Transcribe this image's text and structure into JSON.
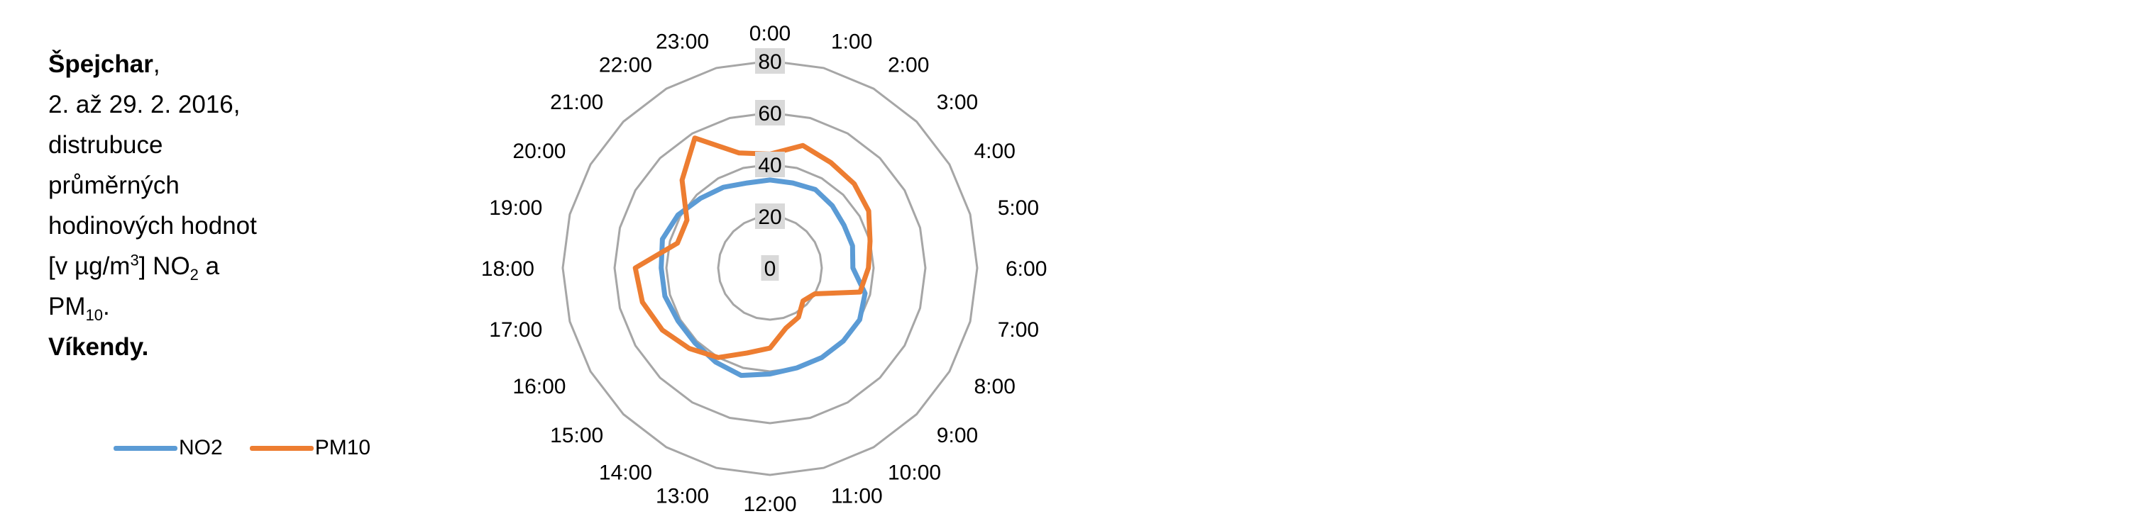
{
  "caption": {
    "station": "Špejchar",
    "station_suffix": ",",
    "period": "2. až 29. 2. 2016,",
    "line1": "distrubuce",
    "line2": "průměrných",
    "line3": "hodinových hodnot",
    "unit_open": "[v µg/m",
    "unit_sup": "3",
    "unit_close": "] NO",
    "no2_sub": "2",
    "and": " a",
    "pm": "PM",
    "pm_sub": "10",
    "pm_end": ".",
    "days": "Víkendy."
  },
  "colors": {
    "no2": "#5B9BD5",
    "pm10": "#ED7D31",
    "grid": "#A6A6A6",
    "tick_bg": "#D9D9D9"
  },
  "chart_data": {
    "type": "radar",
    "categories": [
      "0:00",
      "1:00",
      "2:00",
      "3:00",
      "4:00",
      "5:00",
      "6:00",
      "7:00",
      "8:00",
      "9:00",
      "10:00",
      "11:00",
      "12:00",
      "13:00",
      "14:00",
      "15:00",
      "16:00",
      "17:00",
      "18:00",
      "19:00",
      "20:00",
      "21:00",
      "22:00",
      "23:00"
    ],
    "rlim": [
      0,
      80
    ],
    "ticks": [
      "0",
      "20",
      "40",
      "60",
      "80"
    ],
    "grid": true,
    "legend_position": "bottom-left",
    "series": [
      {
        "name": "NO2",
        "values": [
          34,
          34,
          35,
          34,
          33,
          33,
          32,
          38,
          40,
          40,
          40,
          40,
          41,
          43,
          42,
          41,
          41,
          42,
          42,
          43,
          41,
          38,
          36,
          34
        ]
      },
      {
        "name": "PM10",
        "values": [
          44,
          49,
          47,
          46,
          44,
          40,
          38,
          36,
          20,
          18,
          22,
          24,
          31,
          34,
          40,
          44,
          48,
          51,
          52,
          37,
          37,
          48,
          58,
          46
        ]
      }
    ]
  }
}
